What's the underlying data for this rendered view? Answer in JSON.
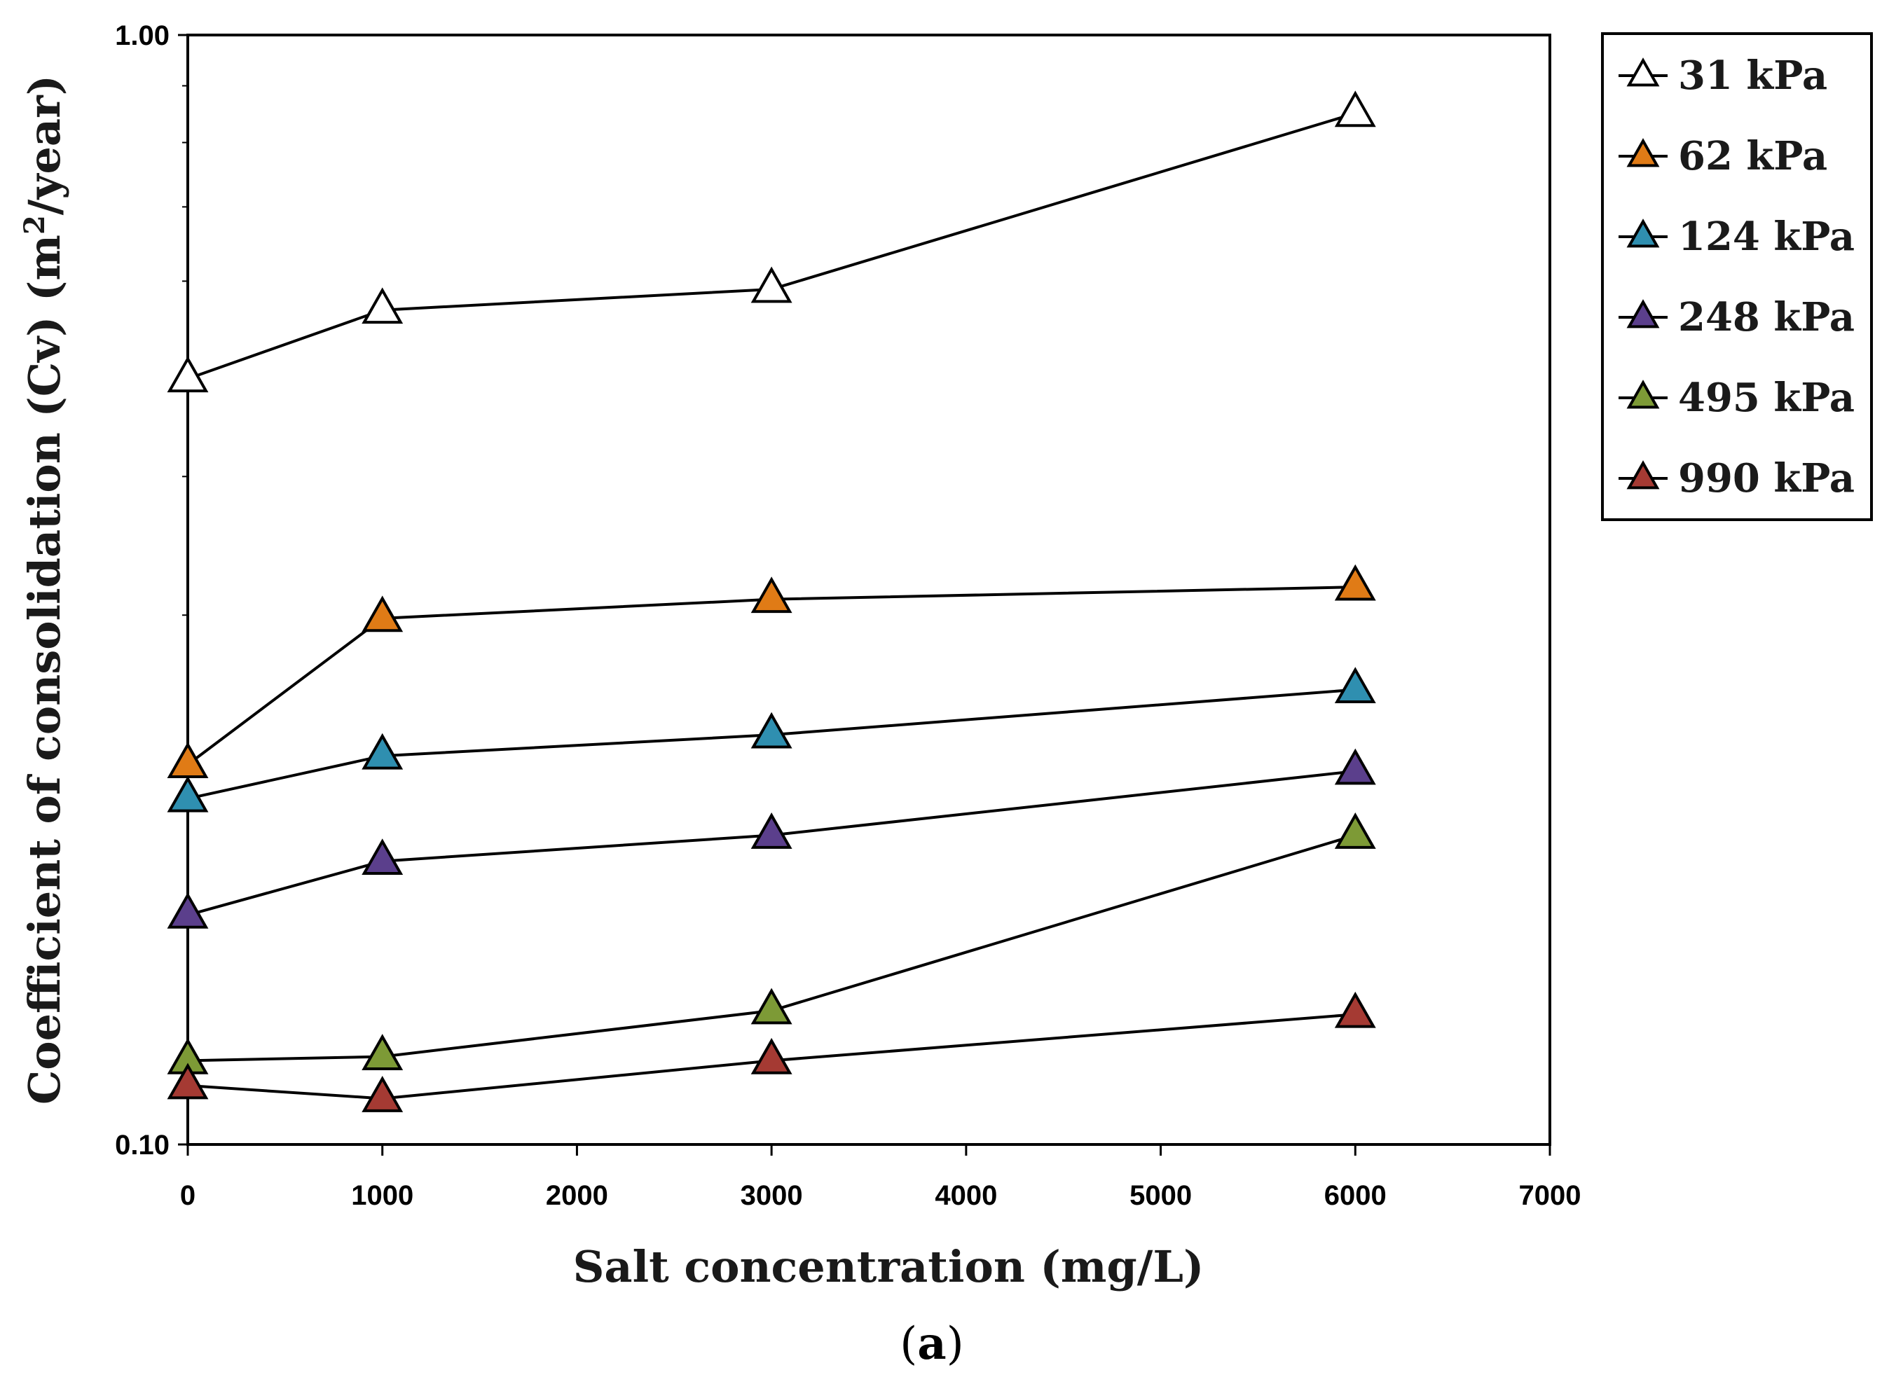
{
  "chart_data": {
    "type": "line",
    "xlabel": "Salt concentration (mg/L)",
    "ylabel": "Coefficient of consolidation (Cv) (m²/year)",
    "ylabel_prefix": "Coefficient of consolidation (Cv) (m",
    "ylabel_sup": "2",
    "ylabel_suffix": "/year)",
    "xlim": [
      0,
      7000
    ],
    "ylim": [
      0.1,
      1.0
    ],
    "yscale": "log",
    "x_ticks": [
      0,
      1000,
      2000,
      3000,
      4000,
      5000,
      6000,
      7000
    ],
    "x_tick_labels": [
      "0",
      "1000",
      "2000",
      "3000",
      "4000",
      "5000",
      "6000",
      "7000"
    ],
    "y_ticks": [
      0.1,
      1.0
    ],
    "y_tick_labels": [
      "0.10",
      "1.00"
    ],
    "grid": false,
    "legend_position": "top-right-outside",
    "caption": {
      "open": "(",
      "letter": "a",
      "close": ")"
    },
    "x": [
      0,
      1000,
      3000,
      6000
    ],
    "series": [
      {
        "name": "31 kPa",
        "color": "#ffffff",
        "values": [
          0.49,
          0.565,
          0.59,
          0.85
        ]
      },
      {
        "name": "62 kPa",
        "color": "#e07b16",
        "values": [
          0.22,
          0.298,
          0.31,
          0.318
        ]
      },
      {
        "name": "124 kPa",
        "color": "#2f8fb0",
        "values": [
          0.205,
          0.224,
          0.234,
          0.257
        ]
      },
      {
        "name": "248 kPa",
        "color": "#5b3f8c",
        "values": [
          0.161,
          0.18,
          0.19,
          0.217
        ]
      },
      {
        "name": "495 kPa",
        "color": "#7d9a36",
        "values": [
          0.119,
          0.12,
          0.132,
          0.19
        ]
      },
      {
        "name": "990 kPa",
        "color": "#a53a33",
        "values": [
          0.113,
          0.11,
          0.119,
          0.131
        ]
      }
    ]
  }
}
